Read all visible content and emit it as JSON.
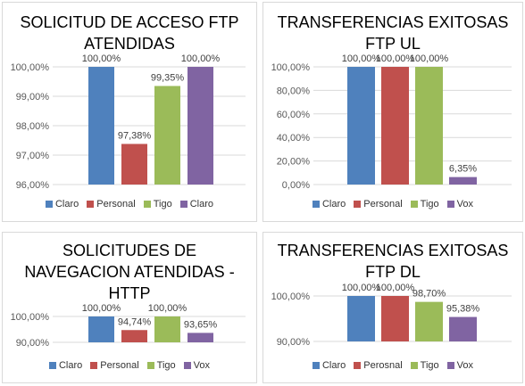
{
  "colors": {
    "claro": "#4f81bd",
    "personal": "#c0504d",
    "tigo": "#9bbb59",
    "vox": "#8064a2"
  },
  "chart_data": [
    {
      "type": "bar",
      "title": "SOLICITUD DE ACCESO FTP\nATENDIDAS",
      "categories": [
        "Claro",
        "Personal",
        "Tigo",
        "Claro"
      ],
      "values": [
        100.0,
        97.38,
        99.35,
        100.0
      ],
      "value_labels": [
        "100,00%",
        "97,38%",
        "99,35%",
        "100,00%"
      ],
      "ylim": [
        96,
        100
      ],
      "yticks": [
        96,
        97,
        98,
        99,
        100
      ],
      "ytick_labels": [
        "96,00%",
        "97,00%",
        "98,00%",
        "99,00%",
        "100,00%"
      ],
      "legend": [
        "Claro",
        "Personal",
        "Tigo",
        "Claro"
      ],
      "legend_position": "bottom",
      "grid": true
    },
    {
      "type": "bar",
      "title": "TRANSFERENCIAS EXITOSAS\nFTP UL",
      "categories": [
        "Claro",
        "Personal",
        "Tigo",
        "Vox"
      ],
      "values": [
        100.0,
        100.0,
        100.0,
        6.35
      ],
      "value_labels": [
        "100,00%",
        "100,00%",
        "100,00%",
        "6,35%"
      ],
      "ylim": [
        0,
        100
      ],
      "yticks": [
        0,
        20,
        40,
        60,
        80,
        100
      ],
      "ytick_labels": [
        "0,00%",
        "20,00%",
        "40,00%",
        "60,00%",
        "80,00%",
        "100,00%"
      ],
      "legend": [
        "Claro",
        "Personal",
        "Tigo",
        "Vox"
      ],
      "legend_position": "bottom",
      "grid": true
    },
    {
      "type": "bar",
      "title": "SOLICITUDES DE\nNAVEGACION ATENDIDAS -\nHTTP",
      "categories": [
        "Claro",
        "Personal",
        "Tigo",
        "Vox"
      ],
      "values": [
        100.0,
        94.74,
        100.0,
        93.65
      ],
      "value_labels": [
        "100,00%",
        "94,74%",
        "100,00%",
        "93,65%"
      ],
      "ylim": [
        90,
        100
      ],
      "yticks": [
        90,
        100
      ],
      "ytick_labels": [
        "90,00%",
        "100,00%"
      ],
      "legend": [
        "Claro",
        "Personal",
        "Tigo",
        "Vox"
      ],
      "legend_position": "bottom",
      "grid": true
    },
    {
      "type": "bar",
      "title": "TRANSFERENCIAS EXITOSAS\nFTP DL",
      "categories": [
        "Claro",
        "Perosnal",
        "Tigo",
        "Vox"
      ],
      "values": [
        100.0,
        100.0,
        98.7,
        95.38
      ],
      "value_labels": [
        "100,00%",
        "100,00%",
        "98,70%",
        "95,38%"
      ],
      "ylim": [
        90,
        100
      ],
      "yticks": [
        90,
        100
      ],
      "ytick_labels": [
        "90,00%",
        "100,00%"
      ],
      "legend": [
        "Claro",
        "Perosnal",
        "Tigo",
        "Vox"
      ],
      "legend_position": "bottom",
      "grid": true
    }
  ]
}
